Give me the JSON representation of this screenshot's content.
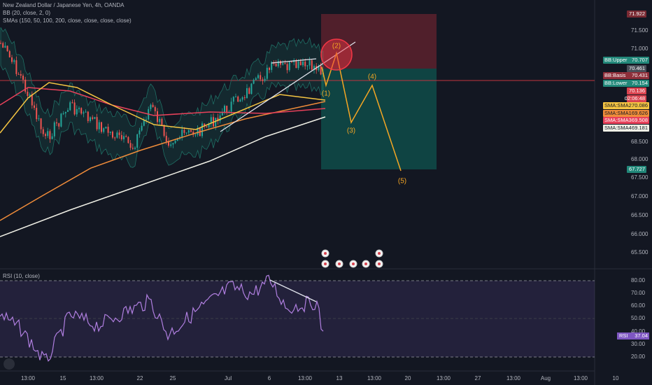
{
  "header": {
    "title": "New Zealand Dollar / Japanese Yen, 4h, OANDA",
    "bb": "BB (20, close, 2, 0)",
    "smas": "SMAs (150, 50, 100, 200, close, close, close, close)"
  },
  "price_axis": [
    "71.500",
    "71.000",
    "68.500",
    "68.000",
    "67.500",
    "67.000",
    "66.500",
    "66.000",
    "65.500"
  ],
  "price_badges": [
    {
      "value": "71.922",
      "color": "#7a2a33"
    },
    {
      "name": "BB:Upper",
      "value": "70.707",
      "color": "#22887a"
    },
    {
      "value": "70.461",
      "color": "#4a4e58"
    },
    {
      "name": "BB:Basis",
      "value": "70.431",
      "color": "#8e2f3a"
    },
    {
      "name": "BB:Lower",
      "value": "70.154",
      "color": "#22887a"
    },
    {
      "value": "70.136",
      "color": "#d9434f"
    },
    {
      "value": "02:06:48",
      "color": "#d9434f"
    },
    {
      "name": "SMA:SMA2",
      "value": "70.086",
      "color": "#f5c542"
    },
    {
      "name": "SMA:SMA1",
      "value": "69.626",
      "color": "#f08c3a"
    },
    {
      "name": "SMA:SMA3",
      "value": "69.508",
      "color": "#e8415a"
    },
    {
      "name": "SMA:SMA4",
      "value": "69.181",
      "color": "#f0f0e6"
    },
    {
      "value": "67.727",
      "color": "#22887a"
    }
  ],
  "waves": [
    "(1)",
    "(2)",
    "(3)",
    "(4)",
    "(5)"
  ],
  "rsi": {
    "title": "RSI (10, close)",
    "axis": [
      "80.00",
      "70.00",
      "60.00",
      "50.00",
      "40.00",
      "30.00",
      "20.00"
    ],
    "badge_name": "RSI",
    "badge_value": "37.04"
  },
  "time_axis": [
    "13:00",
    "15",
    "13:00",
    "22",
    "25",
    "Jul",
    "6",
    "13:00",
    "13",
    "13:00",
    "20",
    "13:00",
    "27",
    "13:00",
    "Aug",
    "13:00",
    "10"
  ]
}
